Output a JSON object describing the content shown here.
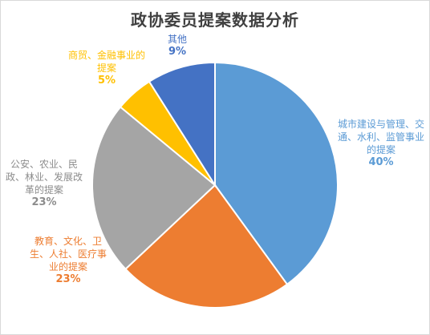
{
  "chart_data": {
    "type": "pie",
    "title": "政协委员提案数据分析",
    "slices": [
      {
        "label": "城市建设与管理、交通、水利、监管事业的提案",
        "value": 40,
        "pct_label": "40%",
        "color": "#5b9bd5"
      },
      {
        "label": "教育、文化、卫生、人社、医疗事业的提案",
        "value": 23,
        "pct_label": "23%",
        "color": "#ed7d31"
      },
      {
        "label": "公安、农业、民政、林业、发展改革的提案",
        "value": 23,
        "pct_label": "23%",
        "color": "#a5a5a5"
      },
      {
        "label": "商贸、金融事业的提案",
        "value": 5,
        "pct_label": "5%",
        "color": "#ffc000"
      },
      {
        "label": "其他",
        "value": 9,
        "pct_label": "9%",
        "color": "#4472c4"
      }
    ],
    "legend": "none"
  }
}
